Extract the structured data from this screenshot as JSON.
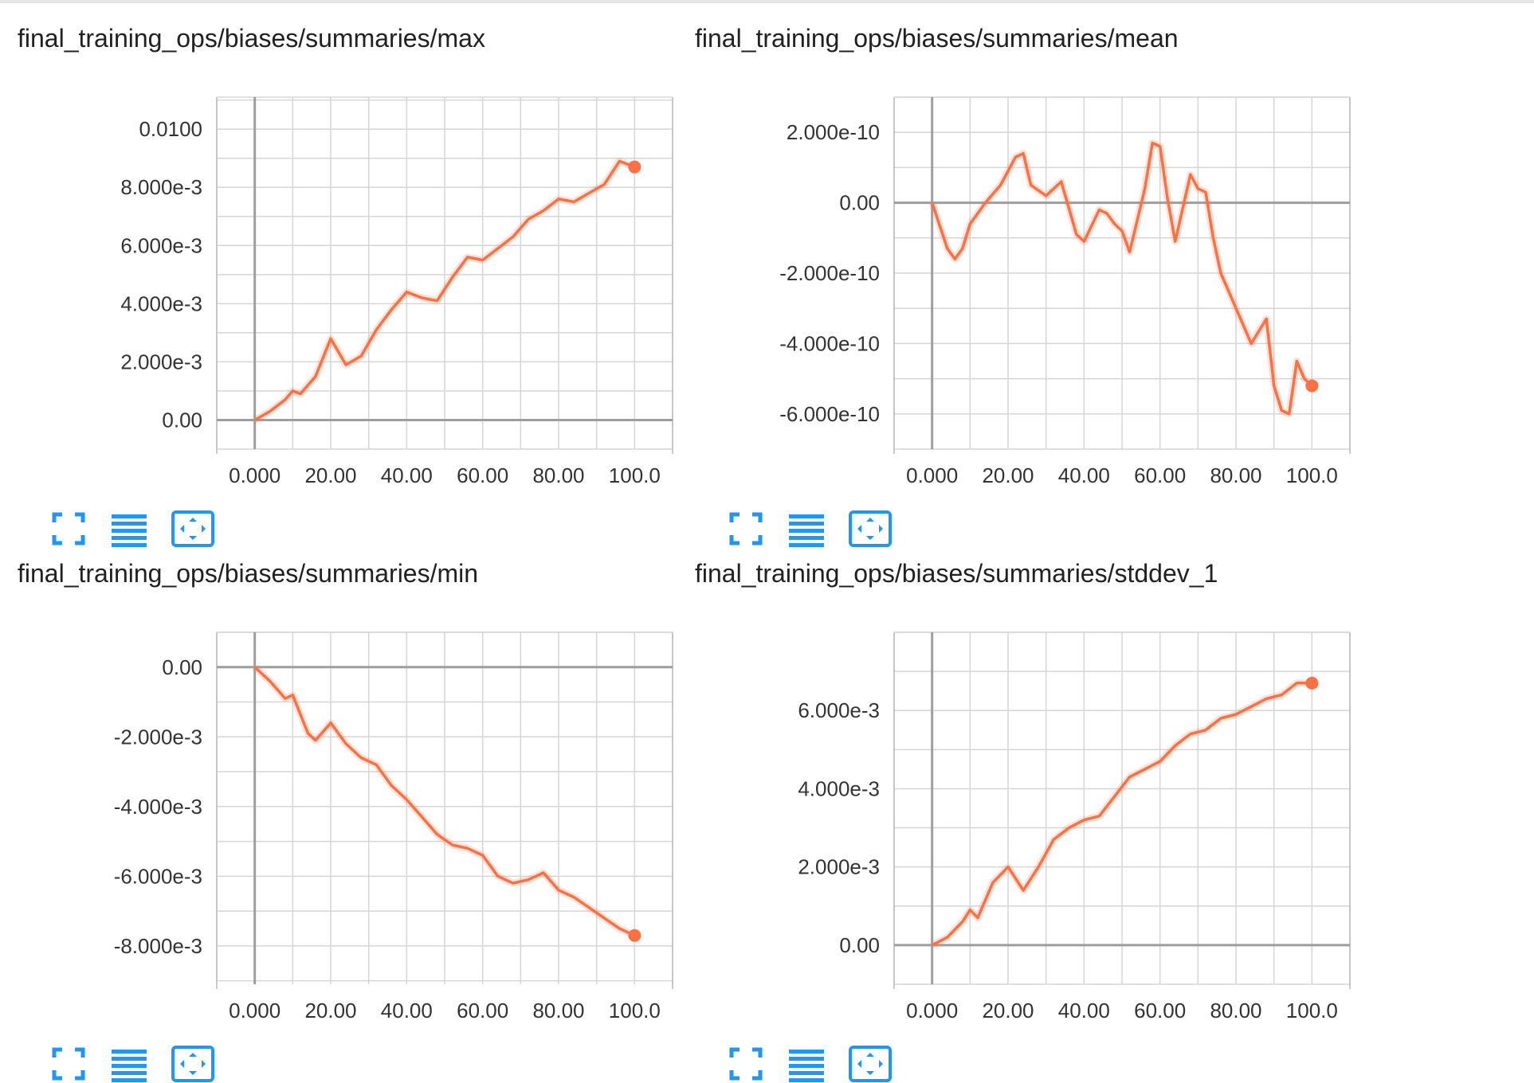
{
  "charts": [
    {
      "title": "final_training_ops/biases/summaries/max",
      "chart_data": {
        "type": "line",
        "title": "final_training_ops/biases/summaries/max",
        "xlim": [
          -10,
          110
        ],
        "ylim": [
          -0.001,
          0.0111
        ],
        "x_ticks": [
          0,
          20,
          40,
          60,
          80,
          100
        ],
        "x_tick_labels": [
          "0.000",
          "20.00",
          "40.00",
          "60.00",
          "80.00",
          "100.0"
        ],
        "y_ticks": [
          0,
          0.002,
          0.004,
          0.006,
          0.008,
          0.01
        ],
        "y_tick_labels": [
          "0.00",
          "2.000e-3",
          "4.000e-3",
          "6.000e-3",
          "8.000e-3",
          "0.0100"
        ],
        "grid": true,
        "series": [
          {
            "color": "#ff7043",
            "x": [
              0,
              4,
              8,
              10,
              12,
              16,
              20,
              24,
              28,
              32,
              36,
              40,
              44,
              48,
              52,
              56,
              60,
              64,
              68,
              72,
              76,
              80,
              84,
              88,
              92,
              96,
              100
            ],
            "y": [
              0,
              0.0003,
              0.0007,
              0.001,
              0.0009,
              0.0015,
              0.0028,
              0.0019,
              0.0022,
              0.0031,
              0.0038,
              0.0044,
              0.0042,
              0.0041,
              0.0049,
              0.0056,
              0.0055,
              0.0059,
              0.0063,
              0.0069,
              0.0072,
              0.0076,
              0.0075,
              0.0078,
              0.0081,
              0.0089,
              0.0087
            ]
          }
        ]
      }
    },
    {
      "title": "final_training_ops/biases/summaries/mean",
      "chart_data": {
        "type": "line",
        "title": "final_training_ops/biases/summaries/mean",
        "xlim": [
          -10,
          110
        ],
        "ylim": [
          -7e-10,
          3e-10
        ],
        "x_ticks": [
          0,
          20,
          40,
          60,
          80,
          100
        ],
        "x_tick_labels": [
          "0.000",
          "20.00",
          "40.00",
          "60.00",
          "80.00",
          "100.0"
        ],
        "y_ticks": [
          -6e-10,
          -4e-10,
          -2e-10,
          0,
          2e-10
        ],
        "y_tick_labels": [
          "-6.000e-10",
          "-4.000e-10",
          "-2.000e-10",
          "0.00",
          "2.000e-10"
        ],
        "grid": true,
        "series": [
          {
            "color": "#ff7043",
            "x": [
              0,
              4,
              6,
              8,
              10,
              12,
              14,
              18,
              22,
              24,
              26,
              30,
              34,
              38,
              40,
              44,
              46,
              48,
              50,
              52,
              56,
              58,
              60,
              62,
              64,
              68,
              70,
              72,
              74,
              76,
              80,
              84,
              88,
              90,
              92,
              94,
              96,
              98,
              100
            ],
            "y": [
              0,
              -1.3e-10,
              -1.6e-10,
              -1.3e-10,
              -6e-11,
              -3e-11,
              0.0,
              5e-11,
              1.3e-10,
              1.4e-10,
              5e-11,
              2e-11,
              6e-11,
              -9e-11,
              -1.1e-10,
              -2e-11,
              -3e-11,
              -6e-11,
              -8e-11,
              -1.4e-10,
              4e-11,
              1.7e-10,
              1.6e-10,
              1e-11,
              -1.1e-10,
              8e-11,
              4e-11,
              3e-11,
              -1e-10,
              -2e-10,
              -3e-10,
              -4e-10,
              -3.3e-10,
              -5.2e-10,
              -5.9e-10,
              -6e-10,
              -4.5e-10,
              -5e-10,
              -5.2e-10
            ]
          }
        ]
      }
    },
    {
      "title": "final_training_ops/biases/summaries/min",
      "chart_data": {
        "type": "line",
        "title": "final_training_ops/biases/summaries/min",
        "xlim": [
          -10,
          110
        ],
        "ylim": [
          -0.0091,
          0.001
        ],
        "x_ticks": [
          0,
          20,
          40,
          60,
          80,
          100
        ],
        "x_tick_labels": [
          "0.000",
          "20.00",
          "40.00",
          "60.00",
          "80.00",
          "100.0"
        ],
        "y_ticks": [
          -0.008,
          -0.006,
          -0.004,
          -0.002,
          0
        ],
        "y_tick_labels": [
          "-8.000e-3",
          "-6.000e-3",
          "-4.000e-3",
          "-2.000e-3",
          "0.00"
        ],
        "grid": true,
        "series": [
          {
            "color": "#ff7043",
            "x": [
              0,
              4,
              8,
              10,
              14,
              16,
              20,
              24,
              28,
              32,
              36,
              40,
              44,
              48,
              52,
              56,
              60,
              64,
              68,
              72,
              76,
              80,
              84,
              88,
              92,
              96,
              100
            ],
            "y": [
              0,
              -0.0004,
              -0.0009,
              -0.0008,
              -0.0019,
              -0.0021,
              -0.0016,
              -0.0022,
              -0.0026,
              -0.0028,
              -0.0034,
              -0.0038,
              -0.0043,
              -0.0048,
              -0.0051,
              -0.0052,
              -0.0054,
              -0.006,
              -0.0062,
              -0.0061,
              -0.0059,
              -0.0064,
              -0.0066,
              -0.0069,
              -0.0072,
              -0.0075,
              -0.0077
            ]
          }
        ]
      }
    },
    {
      "title": "final_training_ops/biases/summaries/stddev_1",
      "chart_data": {
        "type": "line",
        "title": "final_training_ops/biases/summaries/stddev_1",
        "xlim": [
          -10,
          110
        ],
        "ylim": [
          -0.001,
          0.008
        ],
        "x_ticks": [
          0,
          20,
          40,
          60,
          80,
          100
        ],
        "x_tick_labels": [
          "0.000",
          "20.00",
          "40.00",
          "60.00",
          "80.00",
          "100.0"
        ],
        "y_ticks": [
          0,
          0.002,
          0.004,
          0.006
        ],
        "y_tick_labels": [
          "0.00",
          "2.000e-3",
          "4.000e-3",
          "6.000e-3"
        ],
        "grid": true,
        "series": [
          {
            "color": "#ff7043",
            "x": [
              0,
              4,
              8,
              10,
              12,
              16,
              20,
              24,
              28,
              32,
              36,
              40,
              44,
              48,
              52,
              56,
              60,
              64,
              68,
              72,
              76,
              80,
              84,
              88,
              92,
              96,
              100
            ],
            "y": [
              0,
              0.0002,
              0.0006,
              0.0009,
              0.0007,
              0.0016,
              0.002,
              0.0014,
              0.002,
              0.0027,
              0.003,
              0.0032,
              0.0033,
              0.0038,
              0.0043,
              0.0045,
              0.0047,
              0.0051,
              0.0054,
              0.0055,
              0.0058,
              0.0059,
              0.0061,
              0.0063,
              0.0064,
              0.0067,
              0.0067
            ]
          }
        ]
      }
    }
  ],
  "toolbar": {
    "icons": [
      "expand-icon",
      "toggle-y-log-icon",
      "fit-domain-icon"
    ],
    "accent": "#2196f3"
  }
}
